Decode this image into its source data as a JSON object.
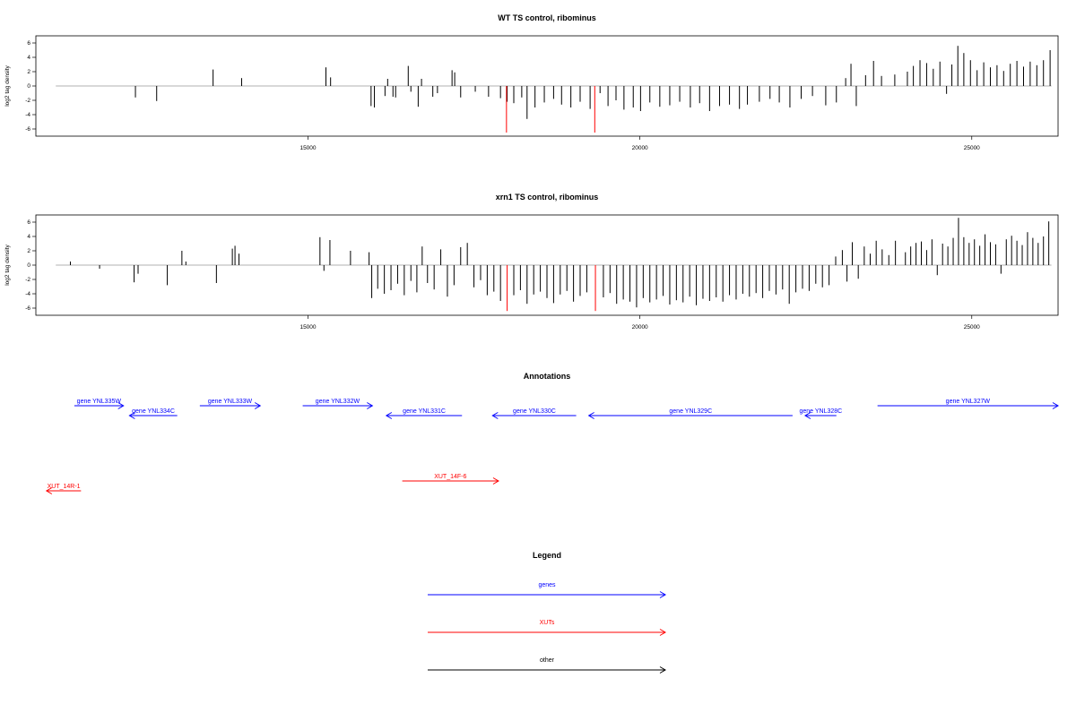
{
  "chart_data": [
    {
      "type": "bar",
      "title": "WT TS control, ribominus",
      "ylabel": "log2 tag density",
      "xlim": [
        10900,
        26300
      ],
      "ylim": [
        -7,
        7
      ],
      "x_ticks": [
        15000,
        20000,
        25000
      ],
      "y_ticks": [
        -6,
        -4,
        -2,
        0,
        2,
        4,
        6
      ],
      "baseline_range": [
        11200,
        26200
      ],
      "bars": [
        {
          "x": 12400,
          "y": -1.6
        },
        {
          "x": 12720,
          "y": -2.1
        },
        {
          "x": 13570,
          "y": 2.3
        },
        {
          "x": 14000,
          "y": 1.1
        },
        {
          "x": 15270,
          "y": 2.6
        },
        {
          "x": 15340,
          "y": 1.2
        },
        {
          "x": 15950,
          "y": -2.8
        },
        {
          "x": 16000,
          "y": -3.0
        },
        {
          "x": 16160,
          "y": -1.4
        },
        {
          "x": 16200,
          "y": 1.0
        },
        {
          "x": 16280,
          "y": -1.5
        },
        {
          "x": 16320,
          "y": -1.6
        },
        {
          "x": 16510,
          "y": 2.8
        },
        {
          "x": 16550,
          "y": -0.8
        },
        {
          "x": 16660,
          "y": -2.9
        },
        {
          "x": 16710,
          "y": 1.0
        },
        {
          "x": 16880,
          "y": -1.5
        },
        {
          "x": 16950,
          "y": -1.0
        },
        {
          "x": 17170,
          "y": 2.2
        },
        {
          "x": 17210,
          "y": 1.9
        },
        {
          "x": 17300,
          "y": -1.6
        },
        {
          "x": 17520,
          "y": -0.8
        },
        {
          "x": 17720,
          "y": -1.5
        },
        {
          "x": 17900,
          "y": -1.7
        },
        {
          "x": 18000,
          "y": -2.2
        },
        {
          "x": 18100,
          "y": -2.4
        },
        {
          "x": 18220,
          "y": -1.6
        },
        {
          "x": 18300,
          "y": -4.6
        },
        {
          "x": 18420,
          "y": -3.0
        },
        {
          "x": 18560,
          "y": -2.3
        },
        {
          "x": 18700,
          "y": -1.8
        },
        {
          "x": 18820,
          "y": -2.6
        },
        {
          "x": 18960,
          "y": -3.0
        },
        {
          "x": 19100,
          "y": -2.2
        },
        {
          "x": 19250,
          "y": -3.2
        },
        {
          "x": 19400,
          "y": -1.0
        },
        {
          "x": 19520,
          "y": -2.8
        },
        {
          "x": 19640,
          "y": -2.0
        },
        {
          "x": 19760,
          "y": -3.3
        },
        {
          "x": 19900,
          "y": -3.0
        },
        {
          "x": 20010,
          "y": -3.5
        },
        {
          "x": 20150,
          "y": -2.3
        },
        {
          "x": 20300,
          "y": -2.9
        },
        {
          "x": 20450,
          "y": -2.7
        },
        {
          "x": 20600,
          "y": -2.2
        },
        {
          "x": 20760,
          "y": -3.0
        },
        {
          "x": 20900,
          "y": -2.4
        },
        {
          "x": 21050,
          "y": -3.5
        },
        {
          "x": 21200,
          "y": -2.8
        },
        {
          "x": 21350,
          "y": -2.6
        },
        {
          "x": 21500,
          "y": -3.2
        },
        {
          "x": 21620,
          "y": -2.6
        },
        {
          "x": 21800,
          "y": -2.2
        },
        {
          "x": 21960,
          "y": -1.8
        },
        {
          "x": 22100,
          "y": -2.3
        },
        {
          "x": 22260,
          "y": -3.0
        },
        {
          "x": 22430,
          "y": -1.8
        },
        {
          "x": 22600,
          "y": -1.4
        },
        {
          "x": 22800,
          "y": -2.7
        },
        {
          "x": 22960,
          "y": -2.3
        },
        {
          "x": 23100,
          "y": 1.1
        },
        {
          "x": 23180,
          "y": 3.1
        },
        {
          "x": 23260,
          "y": -2.8
        },
        {
          "x": 23400,
          "y": 1.5
        },
        {
          "x": 23520,
          "y": 3.5
        },
        {
          "x": 23640,
          "y": 1.4
        },
        {
          "x": 23840,
          "y": 1.6
        },
        {
          "x": 24030,
          "y": 2.0
        },
        {
          "x": 24120,
          "y": 2.8
        },
        {
          "x": 24220,
          "y": 3.6
        },
        {
          "x": 24320,
          "y": 3.2
        },
        {
          "x": 24420,
          "y": 2.4
        },
        {
          "x": 24520,
          "y": 3.4
        },
        {
          "x": 24620,
          "y": -1.1
        },
        {
          "x": 24700,
          "y": 3.0
        },
        {
          "x": 24790,
          "y": 5.6
        },
        {
          "x": 24880,
          "y": 4.6
        },
        {
          "x": 24980,
          "y": 3.6
        },
        {
          "x": 25080,
          "y": 2.2
        },
        {
          "x": 25180,
          "y": 3.3
        },
        {
          "x": 25280,
          "y": 2.6
        },
        {
          "x": 25380,
          "y": 2.9
        },
        {
          "x": 25480,
          "y": 2.1
        },
        {
          "x": 25580,
          "y": 3.1
        },
        {
          "x": 25680,
          "y": 3.5
        },
        {
          "x": 25780,
          "y": 2.7
        },
        {
          "x": 25880,
          "y": 3.4
        },
        {
          "x": 25980,
          "y": 2.9
        },
        {
          "x": 26080,
          "y": 3.6
        },
        {
          "x": 26180,
          "y": 5.0
        }
      ],
      "highlight_bars": [
        {
          "x": 17990,
          "y": -6.5
        },
        {
          "x": 19320,
          "y": -6.5
        }
      ]
    },
    {
      "type": "bar",
      "title": "xrn1 TS control, ribominus",
      "ylabel": "log2 tag density",
      "xlim": [
        10900,
        26300
      ],
      "ylim": [
        -7,
        7
      ],
      "x_ticks": [
        15000,
        20000,
        25000
      ],
      "y_ticks": [
        -6,
        -4,
        -2,
        0,
        2,
        4,
        6
      ],
      "baseline_range": [
        11200,
        26200
      ],
      "bars": [
        {
          "x": 11420,
          "y": 0.5
        },
        {
          "x": 11860,
          "y": -0.5
        },
        {
          "x": 12380,
          "y": -2.4
        },
        {
          "x": 12440,
          "y": -1.2
        },
        {
          "x": 12880,
          "y": -2.8
        },
        {
          "x": 13100,
          "y": 2.0
        },
        {
          "x": 13160,
          "y": 0.5
        },
        {
          "x": 13620,
          "y": -2.5
        },
        {
          "x": 13860,
          "y": 2.3
        },
        {
          "x": 13900,
          "y": 2.7
        },
        {
          "x": 13960,
          "y": 1.6
        },
        {
          "x": 15180,
          "y": 3.9
        },
        {
          "x": 15240,
          "y": -0.8
        },
        {
          "x": 15330,
          "y": 3.5
        },
        {
          "x": 15640,
          "y": 2.0
        },
        {
          "x": 15920,
          "y": 1.8
        },
        {
          "x": 15960,
          "y": -4.6
        },
        {
          "x": 16050,
          "y": -3.3
        },
        {
          "x": 16150,
          "y": -4.0
        },
        {
          "x": 16250,
          "y": -3.5
        },
        {
          "x": 16350,
          "y": -2.6
        },
        {
          "x": 16450,
          "y": -4.2
        },
        {
          "x": 16550,
          "y": -2.2
        },
        {
          "x": 16640,
          "y": -3.8
        },
        {
          "x": 16720,
          "y": 2.6
        },
        {
          "x": 16800,
          "y": -2.5
        },
        {
          "x": 16900,
          "y": -3.4
        },
        {
          "x": 17000,
          "y": 2.2
        },
        {
          "x": 17100,
          "y": -4.4
        },
        {
          "x": 17200,
          "y": -2.8
        },
        {
          "x": 17300,
          "y": 2.5
        },
        {
          "x": 17400,
          "y": 3.1
        },
        {
          "x": 17500,
          "y": -3.1
        },
        {
          "x": 17600,
          "y": -2.1
        },
        {
          "x": 17700,
          "y": -4.2
        },
        {
          "x": 17800,
          "y": -3.7
        },
        {
          "x": 17900,
          "y": -5.0
        },
        {
          "x": 18100,
          "y": -4.2
        },
        {
          "x": 18200,
          "y": -3.5
        },
        {
          "x": 18300,
          "y": -5.4
        },
        {
          "x": 18400,
          "y": -4.1
        },
        {
          "x": 18500,
          "y": -3.7
        },
        {
          "x": 18600,
          "y": -4.6
        },
        {
          "x": 18700,
          "y": -5.3
        },
        {
          "x": 18800,
          "y": -4.1
        },
        {
          "x": 18900,
          "y": -3.6
        },
        {
          "x": 19000,
          "y": -5.1
        },
        {
          "x": 19100,
          "y": -4.3
        },
        {
          "x": 19200,
          "y": -3.8
        },
        {
          "x": 19450,
          "y": -4.5
        },
        {
          "x": 19550,
          "y": -3.9
        },
        {
          "x": 19650,
          "y": -5.4
        },
        {
          "x": 19750,
          "y": -4.8
        },
        {
          "x": 19850,
          "y": -5.1
        },
        {
          "x": 19950,
          "y": -5.9
        },
        {
          "x": 20050,
          "y": -4.6
        },
        {
          "x": 20150,
          "y": -5.2
        },
        {
          "x": 20250,
          "y": -4.8
        },
        {
          "x": 20350,
          "y": -4.3
        },
        {
          "x": 20450,
          "y": -5.5
        },
        {
          "x": 20550,
          "y": -4.9
        },
        {
          "x": 20650,
          "y": -5.2
        },
        {
          "x": 20750,
          "y": -4.4
        },
        {
          "x": 20850,
          "y": -5.6
        },
        {
          "x": 20950,
          "y": -4.7
        },
        {
          "x": 21050,
          "y": -5.0
        },
        {
          "x": 21150,
          "y": -4.5
        },
        {
          "x": 21250,
          "y": -5.1
        },
        {
          "x": 21350,
          "y": -4.2
        },
        {
          "x": 21450,
          "y": -4.8
        },
        {
          "x": 21550,
          "y": -4.0
        },
        {
          "x": 21650,
          "y": -4.4
        },
        {
          "x": 21750,
          "y": -3.9
        },
        {
          "x": 21850,
          "y": -4.6
        },
        {
          "x": 21950,
          "y": -3.6
        },
        {
          "x": 22050,
          "y": -4.1
        },
        {
          "x": 22150,
          "y": -3.4
        },
        {
          "x": 22250,
          "y": -5.4
        },
        {
          "x": 22350,
          "y": -3.8
        },
        {
          "x": 22450,
          "y": -3.3
        },
        {
          "x": 22550,
          "y": -3.6
        },
        {
          "x": 22650,
          "y": -2.6
        },
        {
          "x": 22750,
          "y": -3.1
        },
        {
          "x": 22850,
          "y": -2.8
        },
        {
          "x": 22950,
          "y": 1.2
        },
        {
          "x": 23050,
          "y": 2.1
        },
        {
          "x": 23120,
          "y": -2.3
        },
        {
          "x": 23200,
          "y": 3.2
        },
        {
          "x": 23290,
          "y": -1.9
        },
        {
          "x": 23380,
          "y": 2.6
        },
        {
          "x": 23470,
          "y": 1.6
        },
        {
          "x": 23560,
          "y": 3.4
        },
        {
          "x": 23650,
          "y": 2.2
        },
        {
          "x": 23750,
          "y": 1.4
        },
        {
          "x": 23850,
          "y": 3.4
        },
        {
          "x": 24000,
          "y": 1.8
        },
        {
          "x": 24080,
          "y": 2.6
        },
        {
          "x": 24160,
          "y": 3.1
        },
        {
          "x": 24240,
          "y": 3.3
        },
        {
          "x": 24320,
          "y": 2.1
        },
        {
          "x": 24400,
          "y": 3.6
        },
        {
          "x": 24480,
          "y": -1.4
        },
        {
          "x": 24560,
          "y": 3.0
        },
        {
          "x": 24640,
          "y": 2.6
        },
        {
          "x": 24720,
          "y": 3.8
        },
        {
          "x": 24800,
          "y": 6.6
        },
        {
          "x": 24880,
          "y": 3.9
        },
        {
          "x": 24960,
          "y": 3.1
        },
        {
          "x": 25040,
          "y": 3.6
        },
        {
          "x": 25120,
          "y": 2.7
        },
        {
          "x": 25200,
          "y": 4.3
        },
        {
          "x": 25280,
          "y": 3.2
        },
        {
          "x": 25360,
          "y": 2.9
        },
        {
          "x": 25440,
          "y": -1.2
        },
        {
          "x": 25520,
          "y": 3.6
        },
        {
          "x": 25600,
          "y": 4.1
        },
        {
          "x": 25680,
          "y": 3.4
        },
        {
          "x": 25760,
          "y": 2.8
        },
        {
          "x": 25840,
          "y": 4.6
        },
        {
          "x": 25920,
          "y": 3.8
        },
        {
          "x": 26000,
          "y": 3.1
        },
        {
          "x": 26080,
          "y": 4.0
        },
        {
          "x": 26160,
          "y": 6.1
        }
      ],
      "highlight_bars": [
        {
          "x": 18000,
          "y": -6.4
        },
        {
          "x": 19330,
          "y": -6.4
        }
      ]
    }
  ],
  "annotations": {
    "title": "Annotations",
    "colors": {
      "genes": "#0000ff",
      "XUTs": "#ff0000",
      "other": "#000000"
    },
    "features": [
      {
        "label": "gene YNL335W",
        "type": "genes",
        "start": 11480,
        "end": 12220,
        "strand": "+",
        "row": 0
      },
      {
        "label": "gene YNL334C",
        "type": "genes",
        "start": 12310,
        "end": 13030,
        "strand": "-",
        "row": 1
      },
      {
        "label": "gene YNL333W",
        "type": "genes",
        "start": 13370,
        "end": 14280,
        "strand": "+",
        "row": 0
      },
      {
        "label": "gene YNL332W",
        "type": "genes",
        "start": 14920,
        "end": 15970,
        "strand": "+",
        "row": 0
      },
      {
        "label": "gene YNL331C",
        "type": "genes",
        "start": 16180,
        "end": 17320,
        "strand": "-",
        "row": 1
      },
      {
        "label": "gene YNL330C",
        "type": "genes",
        "start": 17780,
        "end": 19040,
        "strand": "-",
        "row": 1
      },
      {
        "label": "gene YNL329C",
        "type": "genes",
        "start": 19230,
        "end": 22300,
        "strand": "-",
        "row": 1
      },
      {
        "label": "gene YNL328C",
        "type": "genes",
        "start": 22490,
        "end": 22960,
        "strand": "-",
        "row": 1
      },
      {
        "label": "gene YNL327W",
        "type": "genes",
        "start": 23580,
        "end": 26300,
        "strand": "+",
        "row": 0
      },
      {
        "label": "XUT_14R-1",
        "type": "XUTs",
        "start": 11060,
        "end": 11580,
        "strand": "-",
        "row": 2
      },
      {
        "label": "XUT_14F-6",
        "type": "XUTs",
        "start": 16420,
        "end": 17870,
        "strand": "+",
        "row": 3
      }
    ]
  },
  "legend": {
    "title": "Legend",
    "items": [
      {
        "label": "genes",
        "color": "#0000ff"
      },
      {
        "label": "XUTs",
        "color": "#ff0000"
      },
      {
        "label": "other",
        "color": "#000000"
      }
    ]
  }
}
